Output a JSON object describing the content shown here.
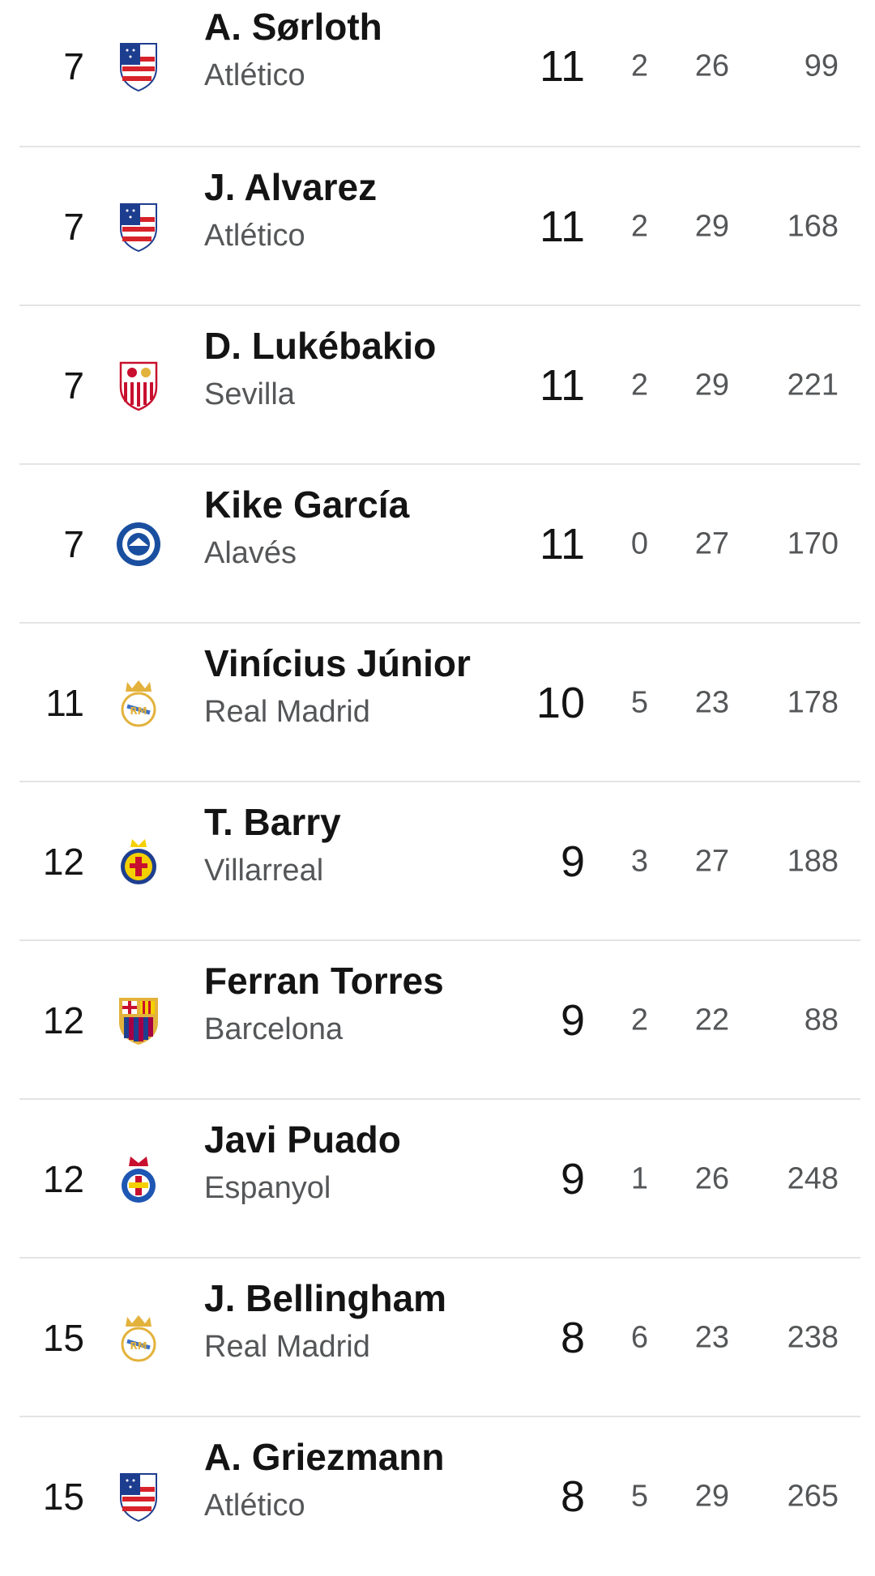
{
  "rows": [
    {
      "rank": "7",
      "player": "A. Sørloth",
      "club": "Atlético",
      "goals": "11",
      "assists": "2",
      "played": "26",
      "minutes": "99",
      "crest": "atletico-crest-icon"
    },
    {
      "rank": "7",
      "player": "J. Alvarez",
      "club": "Atlético",
      "goals": "11",
      "assists": "2",
      "played": "29",
      "minutes": "168",
      "crest": "atletico-crest-icon"
    },
    {
      "rank": "7",
      "player": "D. Lukébakio",
      "club": "Sevilla",
      "goals": "11",
      "assists": "2",
      "played": "29",
      "minutes": "221",
      "crest": "sevilla-crest-icon"
    },
    {
      "rank": "7",
      "player": "Kike García",
      "club": "Alavés",
      "goals": "11",
      "assists": "0",
      "played": "27",
      "minutes": "170",
      "crest": "alaves-crest-icon"
    },
    {
      "rank": "11",
      "player": "Vinícius Júnior",
      "club": "Real Madrid",
      "goals": "10",
      "assists": "5",
      "played": "23",
      "minutes": "178",
      "crest": "real-madrid-crest-icon"
    },
    {
      "rank": "12",
      "player": "T. Barry",
      "club": "Villarreal",
      "goals": "9",
      "assists": "3",
      "played": "27",
      "minutes": "188",
      "crest": "villarreal-crest-icon"
    },
    {
      "rank": "12",
      "player": "Ferran Torres",
      "club": "Barcelona",
      "goals": "9",
      "assists": "2",
      "played": "22",
      "minutes": "88",
      "crest": "barcelona-crest-icon"
    },
    {
      "rank": "12",
      "player": "Javi Puado",
      "club": "Espanyol",
      "goals": "9",
      "assists": "1",
      "played": "26",
      "minutes": "248",
      "crest": "espanyol-crest-icon"
    },
    {
      "rank": "15",
      "player": "J. Bellingham",
      "club": "Real Madrid",
      "goals": "8",
      "assists": "6",
      "played": "23",
      "minutes": "238",
      "crest": "real-madrid-crest-icon"
    },
    {
      "rank": "15",
      "player": "A. Griezmann",
      "club": "Atlético",
      "goals": "8",
      "assists": "5",
      "played": "29",
      "minutes": "265",
      "crest": "atletico-crest-icon"
    }
  ],
  "colors": {
    "primary_text": "#141414",
    "secondary_text": "#545658",
    "divider": "#e4e4e4"
  }
}
